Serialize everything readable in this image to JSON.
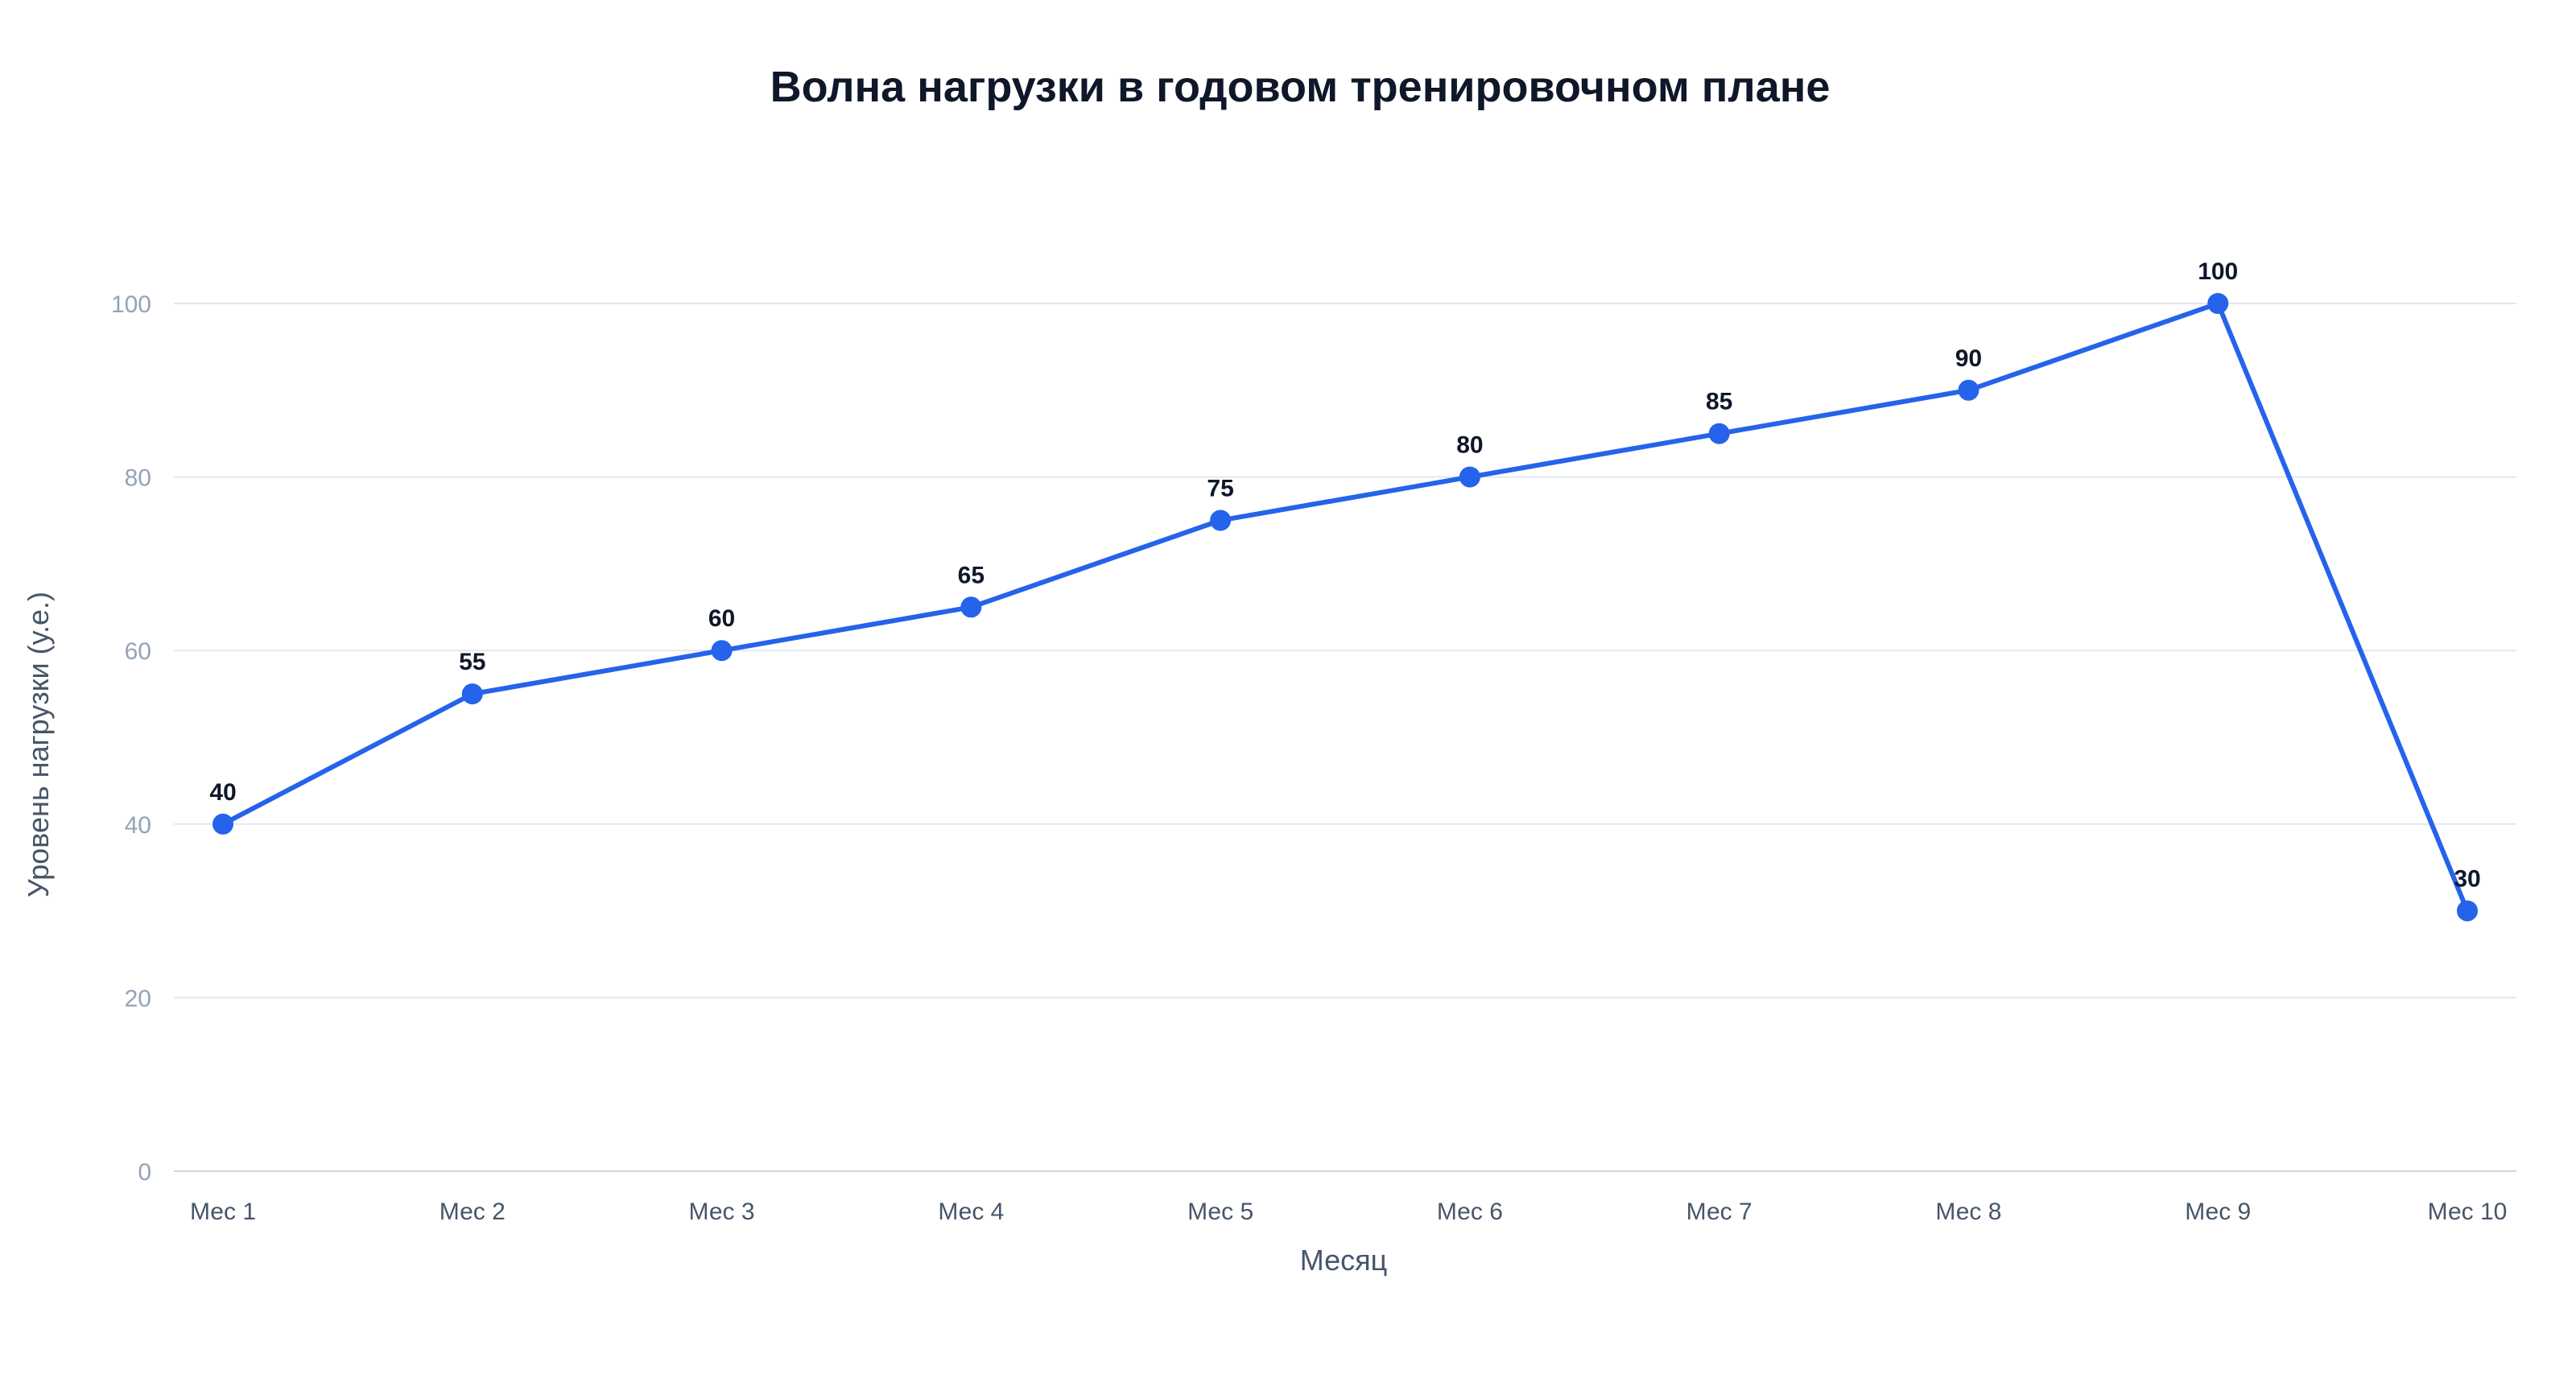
{
  "chart_data": {
    "type": "line",
    "title": "Волна нагрузки в годовом тренировочном плане",
    "xlabel": "Месяц",
    "ylabel": "Уровень нагрузки (у.е.)",
    "categories": [
      "Мес 1",
      "Мес 2",
      "Мес 3",
      "Мес 4",
      "Мес 5",
      "Мес 6",
      "Мес 7",
      "Мес 8",
      "Мес 9",
      "Мес 10"
    ],
    "series": [
      {
        "values": [
          40,
          55,
          60,
          65,
          75,
          80,
          85,
          90,
          100,
          30
        ]
      }
    ],
    "ylim": [
      0,
      100
    ],
    "yticks": [
      0,
      20,
      40,
      60,
      80,
      100
    ],
    "grid": true,
    "legend": "none",
    "data_labels": true,
    "colors": {
      "series": "#2563eb",
      "grid": "#e2e8f0",
      "title": "#0f172a"
    }
  }
}
